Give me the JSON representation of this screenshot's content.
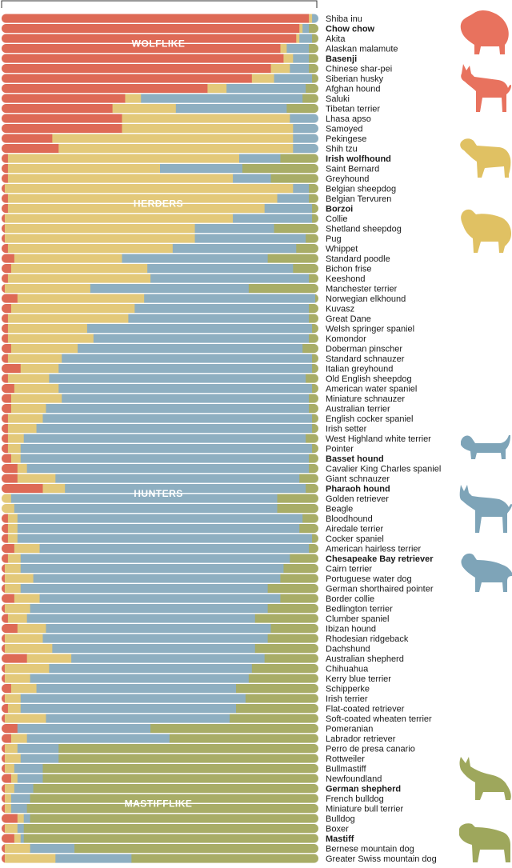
{
  "colors": {
    "wolflike": "#de6a56",
    "herders": "#e3c97a",
    "hunters": "#8eafc1",
    "mastifflike": "#a8ad67",
    "highlight_wolflike": "#d8503f",
    "highlight_herders": "#b98f34",
    "highlight_hunters": "#3e7590",
    "highlight_mastifflike": "#6f7a33",
    "silhouette_wolflike": "#e8725e",
    "silhouette_herders": "#e0c163",
    "silhouette_hunters": "#7ea4b8",
    "silhouette_mastifflike": "#9ea75c"
  },
  "chart_data": {
    "type": "bar",
    "orientation": "horizontal",
    "stacked": true,
    "normalized": true,
    "xlim": [
      0,
      100
    ],
    "series": [
      {
        "name": "WOLFLIKE"
      },
      {
        "name": "HERDERS"
      },
      {
        "name": "HUNTERS"
      },
      {
        "name": "MASTIFFLIKE"
      }
    ],
    "group_labels": [
      {
        "name": "WOLFLIKE",
        "row": 2.5
      },
      {
        "name": "HERDERS",
        "row": 18.5
      },
      {
        "name": "HUNTERS",
        "row": 47.5
      },
      {
        "name": "MASTIFFLIKE",
        "row": 78.5
      }
    ],
    "breeds": [
      {
        "name": "Shiba inu",
        "values": [
          97,
          1,
          2,
          0
        ]
      },
      {
        "name": "Chow chow",
        "values": [
          94,
          1,
          2,
          3
        ],
        "highlight": "wolflike"
      },
      {
        "name": "Akita",
        "values": [
          93,
          1,
          4,
          2
        ]
      },
      {
        "name": "Alaskan malamute",
        "values": [
          88,
          2,
          7,
          3
        ]
      },
      {
        "name": "Basenji",
        "values": [
          89,
          3,
          5,
          3
        ],
        "highlight": "wolflike"
      },
      {
        "name": "Chinese shar-pei",
        "values": [
          85,
          6,
          6,
          3
        ]
      },
      {
        "name": "Siberian husky",
        "values": [
          79,
          7,
          12,
          2
        ]
      },
      {
        "name": "Afghan hound",
        "values": [
          65,
          6,
          25,
          4
        ]
      },
      {
        "name": "Saluki",
        "values": [
          39,
          5,
          51,
          5
        ]
      },
      {
        "name": "Tibetan terrier",
        "values": [
          35,
          20,
          35,
          10
        ]
      },
      {
        "name": "Lhasa apso",
        "values": [
          38,
          53,
          9,
          0
        ]
      },
      {
        "name": "Samoyed",
        "values": [
          38,
          54,
          8,
          0
        ]
      },
      {
        "name": "Pekingese",
        "values": [
          16,
          76,
          8,
          0
        ]
      },
      {
        "name": "Shih tzu",
        "values": [
          18,
          74,
          8,
          0
        ]
      },
      {
        "name": "Irish wolfhound",
        "values": [
          2,
          73,
          13,
          12
        ],
        "highlight": "herders"
      },
      {
        "name": "Saint Bernard",
        "values": [
          2,
          48,
          26,
          24
        ]
      },
      {
        "name": "Greyhound",
        "values": [
          2,
          71,
          12,
          15
        ]
      },
      {
        "name": "Belgian sheepdog",
        "values": [
          1,
          91,
          5,
          3
        ]
      },
      {
        "name": "Belgian Tervuren",
        "values": [
          2,
          85,
          10,
          3
        ]
      },
      {
        "name": "Borzoi",
        "values": [
          2,
          81,
          15,
          2
        ],
        "highlight": "herders"
      },
      {
        "name": "Collie",
        "values": [
          1,
          72,
          25,
          2
        ]
      },
      {
        "name": "Shetland sheepdog",
        "values": [
          1,
          60,
          25,
          14
        ]
      },
      {
        "name": "Pug",
        "values": [
          1,
          60,
          35,
          4
        ]
      },
      {
        "name": "Whippet",
        "values": [
          2,
          52,
          39,
          7
        ]
      },
      {
        "name": "Standard poodle",
        "values": [
          4,
          34,
          46,
          16
        ]
      },
      {
        "name": "Bichon frise",
        "values": [
          3,
          43,
          46,
          8
        ]
      },
      {
        "name": "Keeshond",
        "values": [
          2,
          45,
          50,
          3
        ]
      },
      {
        "name": "Manchester terrier",
        "values": [
          1,
          27,
          50,
          22
        ]
      },
      {
        "name": "Norwegian elkhound",
        "values": [
          5,
          40,
          54,
          1
        ]
      },
      {
        "name": "Kuvasz",
        "values": [
          3,
          39,
          55,
          3
        ]
      },
      {
        "name": "Great Dane",
        "values": [
          2,
          38,
          57,
          3
        ]
      },
      {
        "name": "Welsh springer spaniel",
        "values": [
          2,
          25,
          71,
          2
        ]
      },
      {
        "name": "Komondor",
        "values": [
          2,
          27,
          68,
          3
        ]
      },
      {
        "name": "Doberman pinscher",
        "values": [
          3,
          21,
          71,
          5
        ]
      },
      {
        "name": "Standard schnauzer",
        "values": [
          2,
          17,
          79,
          2
        ]
      },
      {
        "name": "Italian greyhound",
        "values": [
          6,
          12,
          80,
          2
        ]
      },
      {
        "name": "Old English sheepdog",
        "values": [
          2,
          13,
          81,
          4
        ]
      },
      {
        "name": "American water spaniel",
        "values": [
          4,
          14,
          80,
          2
        ]
      },
      {
        "name": "Miniature schnauzer",
        "values": [
          3,
          16,
          78,
          3
        ]
      },
      {
        "name": "Australian terrier",
        "values": [
          3,
          11,
          83,
          3
        ]
      },
      {
        "name": "English cocker spaniel",
        "values": [
          2,
          11,
          85,
          2
        ]
      },
      {
        "name": "Irish setter",
        "values": [
          2,
          9,
          87,
          2
        ]
      },
      {
        "name": "West Highland white terrier",
        "values": [
          2,
          5,
          89,
          4
        ]
      },
      {
        "name": "Pointer",
        "values": [
          2,
          4,
          92,
          2
        ]
      },
      {
        "name": "Basset hound",
        "values": [
          3,
          3,
          91,
          3
        ],
        "highlight": "hunters"
      },
      {
        "name": "Cavalier King Charles spaniel",
        "values": [
          5,
          3,
          89,
          3
        ]
      },
      {
        "name": "Giant schnauzer",
        "values": [
          5,
          12,
          77,
          6
        ]
      },
      {
        "name": "Pharaoh hound",
        "values": [
          13,
          7,
          76,
          4
        ],
        "highlight": "hunters"
      },
      {
        "name": "Golden retriever",
        "values": [
          0,
          3,
          84,
          13
        ]
      },
      {
        "name": "Beagle",
        "values": [
          0,
          4,
          83,
          13
        ]
      },
      {
        "name": "Bloodhound",
        "values": [
          2,
          3,
          90,
          5
        ]
      },
      {
        "name": "Airedale terrier",
        "values": [
          2,
          3,
          89,
          6
        ]
      },
      {
        "name": "Cocker spaniel",
        "values": [
          2,
          3,
          93,
          2
        ]
      },
      {
        "name": "American hairless terrier",
        "values": [
          4,
          8,
          85,
          3
        ]
      },
      {
        "name": "Chesapeake Bay retriever",
        "values": [
          2,
          4,
          85,
          9
        ],
        "highlight": "hunters"
      },
      {
        "name": "Cairn terrier",
        "values": [
          1,
          5,
          83,
          11
        ]
      },
      {
        "name": "Portuguese water dog",
        "values": [
          1,
          9,
          78,
          12
        ]
      },
      {
        "name": "German shorthaired pointer",
        "values": [
          1,
          5,
          78,
          16
        ]
      },
      {
        "name": "Border collie",
        "values": [
          4,
          8,
          76,
          12
        ]
      },
      {
        "name": "Bedlington terrier",
        "values": [
          1,
          8,
          75,
          16
        ]
      },
      {
        "name": "Clumber spaniel",
        "values": [
          2,
          6,
          72,
          20
        ]
      },
      {
        "name": "Ibizan hound",
        "values": [
          5,
          9,
          71,
          15
        ]
      },
      {
        "name": "Rhodesian ridgeback",
        "values": [
          1,
          12,
          71,
          16
        ]
      },
      {
        "name": "Dachshund",
        "values": [
          1,
          15,
          64,
          20
        ]
      },
      {
        "name": "Australian shepherd",
        "values": [
          8,
          14,
          61,
          17
        ]
      },
      {
        "name": "Chihuahua",
        "values": [
          1,
          14,
          64,
          21
        ]
      },
      {
        "name": "Kerry blue terrier",
        "values": [
          1,
          8,
          69,
          22
        ]
      },
      {
        "name": "Schipperke",
        "values": [
          3,
          8,
          63,
          26
        ]
      },
      {
        "name": "Irish terrier",
        "values": [
          1,
          5,
          71,
          23
        ]
      },
      {
        "name": "Flat-coated retriever",
        "values": [
          2,
          4,
          68,
          26
        ]
      },
      {
        "name": "Soft-coated wheaten terrier",
        "values": [
          1,
          13,
          58,
          28
        ]
      },
      {
        "name": "Pomeranian",
        "values": [
          5,
          0,
          42,
          53
        ]
      },
      {
        "name": "Labrador retriever",
        "values": [
          3,
          5,
          45,
          47
        ]
      },
      {
        "name": "Perro de presa canario",
        "values": [
          1,
          4,
          13,
          82
        ]
      },
      {
        "name": "Rottweiler",
        "values": [
          1,
          5,
          12,
          82
        ]
      },
      {
        "name": "Bullmastiff",
        "values": [
          1,
          3,
          9,
          87
        ]
      },
      {
        "name": "Newfoundland",
        "values": [
          3,
          2,
          8,
          87
        ]
      },
      {
        "name": "German shepherd",
        "values": [
          1,
          3,
          6,
          90
        ],
        "highlight": "mastifflike"
      },
      {
        "name": "French bulldog",
        "values": [
          1,
          2,
          6,
          91
        ]
      },
      {
        "name": "Miniature bull terrier",
        "values": [
          1,
          2,
          5,
          92
        ]
      },
      {
        "name": "Bulldog",
        "values": [
          5,
          2,
          2,
          91
        ]
      },
      {
        "name": "Boxer",
        "values": [
          1,
          4,
          2,
          93
        ]
      },
      {
        "name": "Mastiff",
        "values": [
          4,
          2,
          1,
          93
        ],
        "highlight": "mastifflike"
      },
      {
        "name": "Bernese mountain dog",
        "values": [
          1,
          8,
          14,
          77
        ]
      },
      {
        "name": "Greater Swiss mountain dog",
        "values": [
          1,
          16,
          24,
          59
        ]
      }
    ]
  }
}
